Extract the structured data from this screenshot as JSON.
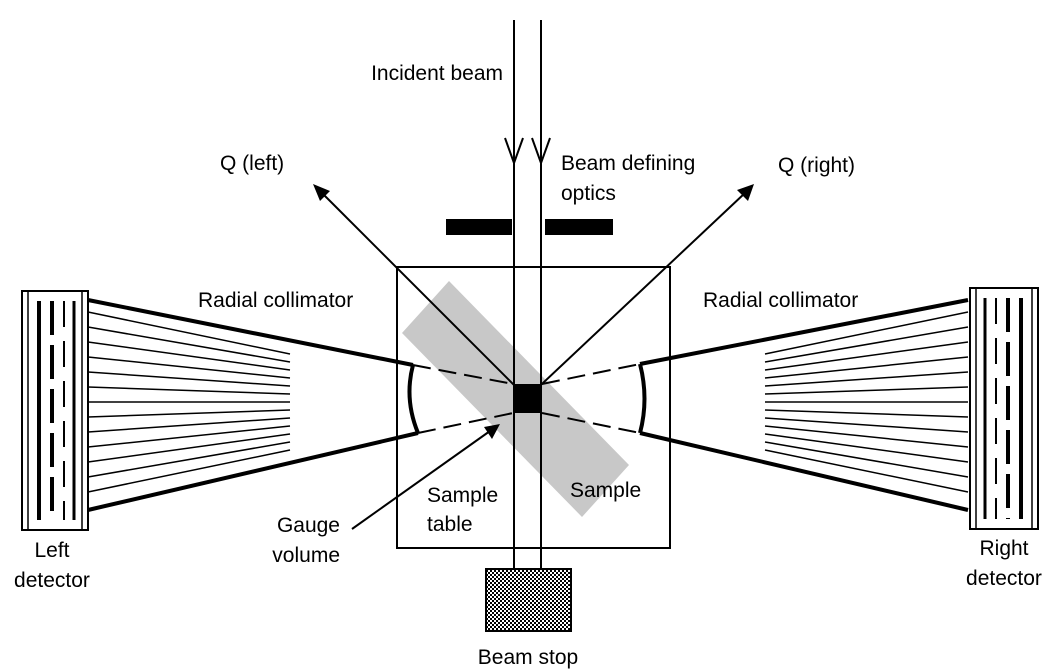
{
  "labels": {
    "incident_beam": "Incident beam",
    "beam_defining_optics_line1": "Beam defining",
    "beam_defining_optics_line2": "optics",
    "q_left": "Q (left)",
    "q_right": "Q (right)",
    "radial_collimator_left": "Radial collimator",
    "radial_collimator_right": "Radial collimator",
    "sample_table_line1": "Sample",
    "sample_table_line2": "table",
    "sample": "Sample",
    "gauge_volume_line1": "Gauge",
    "gauge_volume_line2": "volume",
    "left_detector_line1": "Left",
    "left_detector_line2": "detector",
    "right_detector_line1": "Right",
    "right_detector_line2": "detector",
    "beam_stop": "Beam stop"
  },
  "colors": {
    "line": "#000000",
    "sample_fill": "#c8c8c8",
    "background": "#ffffff"
  }
}
